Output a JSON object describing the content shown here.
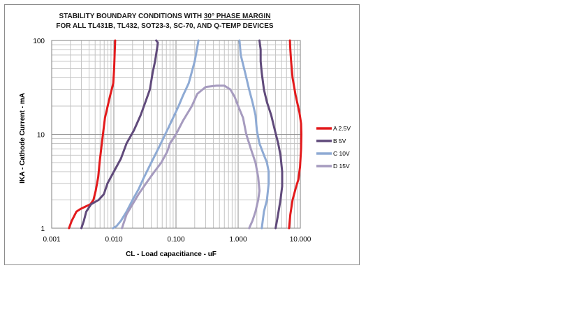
{
  "chart_data": {
    "type": "line",
    "title_line1_pre": "STABILITY BOUNDARY CONDITIONS WITH ",
    "title_line1_underlined": "30° PHASE MARGIN",
    "title_line2": "FOR ALL TL431B, TL432, SOT23-3, SC-70, AND Q-TEMP DEVICES",
    "xlabel": "CL - Load capacitiance - uF",
    "ylabel": "IKA - Cathode Current - mA",
    "x_scale": "log",
    "y_scale": "log",
    "xlim": [
      0.001,
      10
    ],
    "ylim": [
      1,
      100
    ],
    "x_ticks": [
      {
        "value": 0.001,
        "label": "0.001"
      },
      {
        "value": 0.01,
        "label": "0.010"
      },
      {
        "value": 0.1,
        "label": "0.100"
      },
      {
        "value": 1,
        "label": "1.000"
      },
      {
        "value": 10,
        "label": "10.000"
      }
    ],
    "y_ticks": [
      {
        "value": 1,
        "label": "1"
      },
      {
        "value": 10,
        "label": "10"
      },
      {
        "value": 100,
        "label": "100"
      }
    ],
    "grid": true,
    "legend_position": "right",
    "series": [
      {
        "name": "A 2.5V",
        "color": "#e31a1c",
        "segments": [
          {
            "x": [
              0.0019,
              0.0021,
              0.0025,
              0.0029,
              0.0035,
              0.0042,
              0.0047,
              0.0051,
              0.0056,
              0.0059,
              0.0064,
              0.0072,
              0.0086,
              0.0098,
              0.0101,
              0.0103,
              0.0105
            ],
            "y": [
              1,
              1.2,
              1.5,
              1.6,
              1.7,
              1.8,
              2.0,
              2.5,
              3.5,
              5.0,
              8.0,
              15,
              25,
              35,
              50,
              70,
              100
            ]
          },
          {
            "x": [
              6.6,
              6.9,
              7.5,
              8.6,
              9.3,
              9.9,
              10.3,
              10.4,
              10.3,
              9.7,
              8.4,
              7.5,
              7.1,
              6.9,
              6.8
            ],
            "y": [
              1,
              1.4,
              2,
              2.8,
              3.3,
              4.5,
              7,
              10,
              13,
              17,
              26,
              40,
              60,
              80,
              100
            ]
          }
        ]
      },
      {
        "name": "B 5V",
        "color": "#604a7b",
        "segments": [
          {
            "x": [
              0.003,
              0.0033,
              0.0036,
              0.0043,
              0.0057,
              0.0069,
              0.0079,
              0.01,
              0.013,
              0.016,
              0.021,
              0.027,
              0.033,
              0.038,
              0.042,
              0.046,
              0.05,
              0.051,
              0.048
            ],
            "y": [
              1,
              1.2,
              1.5,
              1.8,
              2.0,
              2.3,
              3.0,
              4.0,
              5.5,
              8.0,
              11,
              16,
              23,
              30,
              45,
              60,
              85,
              95,
              100
            ]
          },
          {
            "x": [
              4.0,
              4.3,
              4.8,
              5.1,
              5.1,
              4.8,
              4.4,
              3.9,
              3.4,
              2.9,
              2.6,
              2.4,
              2.3,
              2.3,
              2.2
            ],
            "y": [
              1,
              1.3,
              2,
              2.8,
              4,
              6,
              8,
              11,
              16,
              22,
              30,
              45,
              60,
              80,
              100
            ]
          }
        ]
      },
      {
        "name": "C 10V",
        "color": "#8eaad4",
        "segments": [
          {
            "x": [
              0.0097,
              0.011,
              0.013,
              0.016,
              0.02,
              0.025,
              0.03,
              0.037,
              0.046,
              0.057,
              0.072,
              0.09,
              0.11,
              0.13,
              0.16,
              0.2,
              0.22,
              0.23
            ],
            "y": [
              1,
              1.05,
              1.2,
              1.5,
              2,
              2.6,
              3.4,
              4.5,
              6,
              8,
              11,
              15,
              20,
              26,
              35,
              60,
              85,
              100
            ]
          },
          {
            "x": [
              2.4,
              2.6,
              2.9,
              3.1,
              3.1,
              2.9,
              2.6,
              2.2,
              2.0,
              1.9,
              1.7,
              1.5,
              1.3,
              1.1,
              1.05
            ],
            "y": [
              1,
              1.5,
              2,
              3,
              4,
              5,
              6,
              8,
              11,
              16,
              22,
              30,
              45,
              70,
              100
            ]
          }
        ]
      },
      {
        "name": "D 15V",
        "color": "#a69bbf",
        "segments": [
          {
            "x": [
              0.0135,
              0.016,
              0.02,
              0.025,
              0.033,
              0.045,
              0.058,
              0.072,
              0.08,
              0.09,
              0.1,
              0.13,
              0.18,
              0.22,
              0.3,
              0.45,
              0.6,
              0.75,
              0.88,
              1.0,
              1.2,
              1.35,
              1.6,
              1.9,
              2.1,
              2.2,
              2.1,
              1.9,
              1.7,
              1.5
            ],
            "y": [
              1,
              1.4,
              1.8,
              2.3,
              3,
              4,
              5,
              6.5,
              8,
              9,
              10,
              14,
              20,
              27,
              32,
              33,
              33,
              30,
              25,
              20,
              15,
              10,
              7,
              5,
              3.5,
              2.5,
              2,
              1.5,
              1.2,
              1
            ]
          }
        ]
      }
    ]
  }
}
